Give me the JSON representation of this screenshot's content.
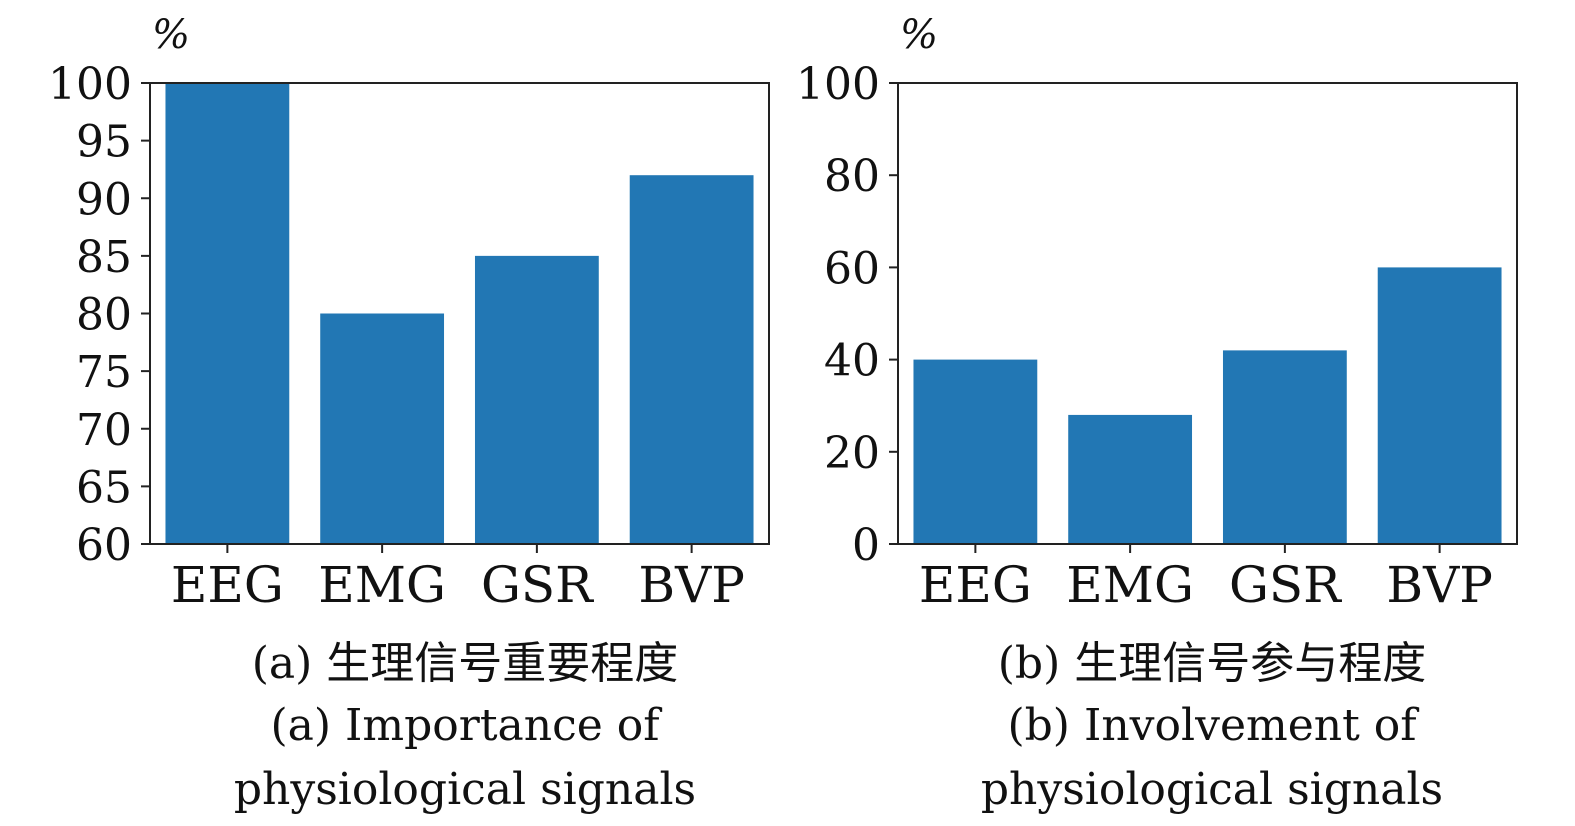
{
  "chart_data": [
    {
      "type": "bar",
      "unit_label": "%",
      "categories": [
        "EEG",
        "EMG",
        "GSR",
        "BVP"
      ],
      "values": [
        100,
        80,
        85,
        92
      ],
      "ylim": [
        60,
        100
      ],
      "yticks": [
        "60",
        "65",
        "70",
        "75",
        "80",
        "85",
        "90",
        "95",
        "100"
      ],
      "ytick_values": [
        60,
        65,
        70,
        75,
        80,
        85,
        90,
        95,
        100
      ],
      "bar_color": "#2277b4",
      "grid": false,
      "caption_zh": "(a) 生理信号重要程度",
      "caption_en_line1": "(a) Importance of",
      "caption_en_line2": "physiological signals"
    },
    {
      "type": "bar",
      "unit_label": "%",
      "categories": [
        "EEG",
        "EMG",
        "GSR",
        "BVP"
      ],
      "values": [
        40,
        28,
        42,
        60
      ],
      "ylim": [
        0,
        100
      ],
      "yticks": [
        "0",
        "20",
        "40",
        "60",
        "80",
        "100"
      ],
      "ytick_values": [
        0,
        20,
        40,
        60,
        80,
        100
      ],
      "bar_color": "#2277b4",
      "grid": false,
      "caption_zh": "(b) 生理信号参与程度",
      "caption_en_line1": "(b) Involvement of",
      "caption_en_line2": "physiological signals"
    }
  ]
}
